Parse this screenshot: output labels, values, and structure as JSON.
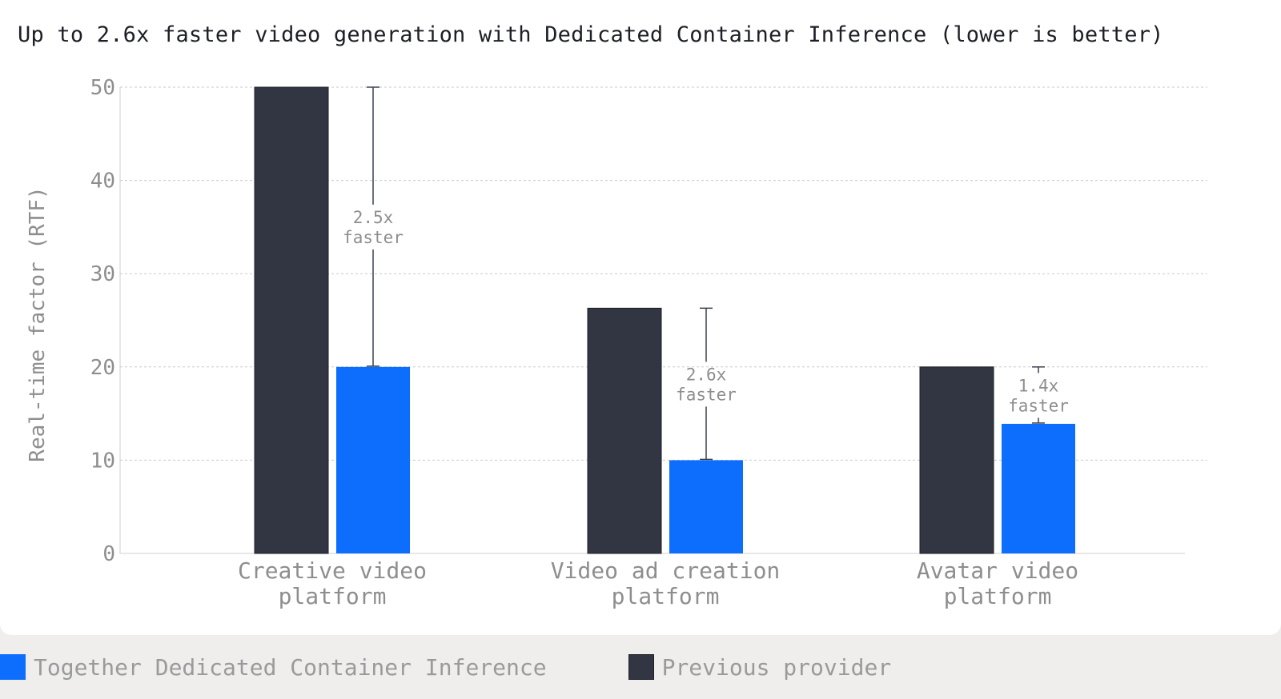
{
  "chart_data": {
    "type": "bar",
    "title": "Up to 2.6x faster video generation with Dedicated Container Inference (lower is better)",
    "ylabel": "Real-time factor (RTF)",
    "xlabel": "",
    "ylim": [
      0,
      50
    ],
    "yticks": [
      "0",
      "10",
      "20",
      "30",
      "40",
      "50"
    ],
    "grid": true,
    "categories": [
      [
        "Creative video",
        "platform"
      ],
      [
        "Video ad creation",
        "platform"
      ],
      [
        "Avatar video",
        "platform"
      ]
    ],
    "series": [
      {
        "name": "Previous provider",
        "color": "#323643",
        "values": [
          50,
          26.3,
          20
        ]
      },
      {
        "name": "Together Dedicated Container Inference",
        "color": "#0d6efd",
        "values": [
          20,
          10,
          13.9
        ]
      }
    ],
    "annotations": [
      {
        "line1": "2.5x",
        "line2": "faster"
      },
      {
        "line1": "2.6x",
        "line2": "faster"
      },
      {
        "line1": "1.4x",
        "line2": "faster"
      }
    ]
  },
  "legend": {
    "items": [
      {
        "label": "Together Dedicated Container Inference",
        "color": "#0d6efd"
      },
      {
        "label": "Previous provider",
        "color": "#323643"
      }
    ]
  }
}
